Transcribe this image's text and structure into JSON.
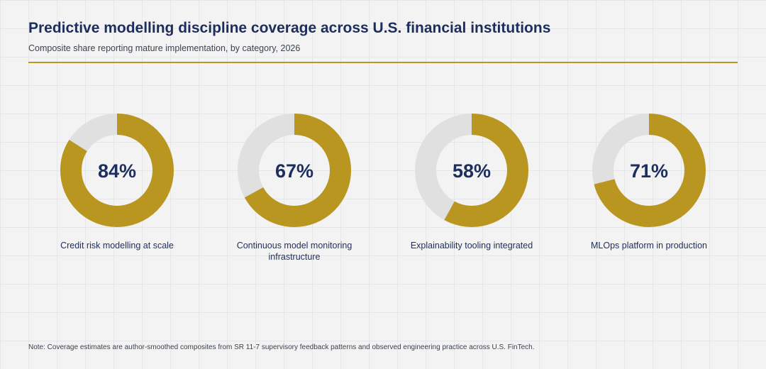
{
  "colors": {
    "accent": "#b8961f",
    "track": "#e0e0e0",
    "title": "#1c2e5e",
    "background": "#f3f3f3"
  },
  "chart_data": {
    "type": "donut",
    "title": "Predictive modelling discipline coverage across U.S. financial institutions",
    "subtitle": "Composite share reporting mature implementation, by category, 2026",
    "unit": "%",
    "categories": [
      "Credit risk modelling at scale",
      "Continuous model monitoring infrastructure",
      "Explainability tooling integrated",
      "MLOps platform in production"
    ],
    "values": [
      84,
      67,
      58,
      71
    ],
    "labels": [
      "84%",
      "67%",
      "58%",
      "71%"
    ],
    "note": "Note: Coverage estimates are author-smoothed composites from SR 11-7 supervisory feedback patterns and observed engineering practice across U.S. FinTech."
  }
}
